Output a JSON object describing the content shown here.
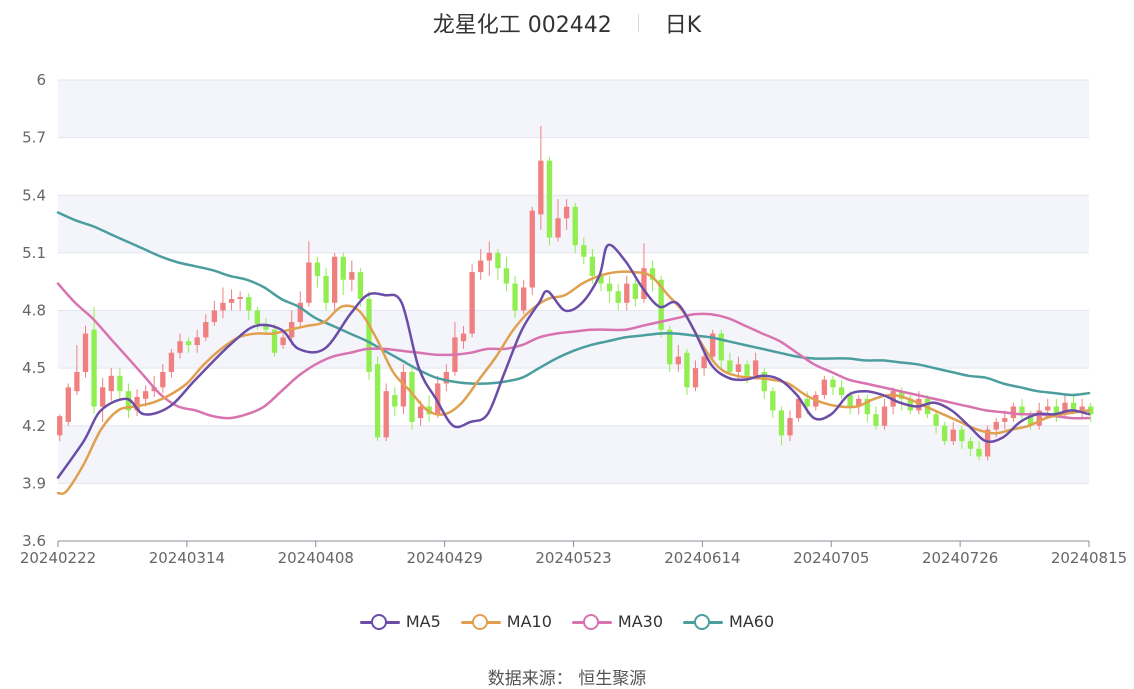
{
  "header": {
    "name": "龙星化工 002442",
    "period": "日K"
  },
  "source": "数据来源： 恒生聚源",
  "colors": {
    "up": "#f08080",
    "down": "#90ee50",
    "band": "#f4f5fb",
    "grid": "#e3e6f2",
    "ma5": "#6b4da8",
    "ma10": "#e0a050",
    "ma30": "#d873b0",
    "ma60": "#4c9e9e"
  },
  "chart_data": {
    "type": "candlestick",
    "title": "龙星化工 002442 日K",
    "ylim": [
      3.6,
      6.0
    ],
    "yticks": [
      "3.6",
      "3.9",
      "4.2",
      "4.5",
      "4.8",
      "5.1",
      "5.4",
      "5.7",
      "6"
    ],
    "xticks": [
      "20240222",
      "20240314",
      "20240408",
      "20240429",
      "20240523",
      "20240614",
      "20240705",
      "20240726",
      "20240815"
    ],
    "xtick_index": [
      0,
      15,
      30,
      45,
      60,
      75,
      90,
      105,
      120
    ],
    "n_days": 120,
    "legend": [
      {
        "key": "ma5",
        "label": "MA5"
      },
      {
        "key": "ma10",
        "label": "MA10"
      },
      {
        "key": "ma30",
        "label": "MA30"
      },
      {
        "key": "ma60",
        "label": "MA60"
      }
    ],
    "candles": [
      [
        4.15,
        4.25,
        4.12,
        4.26
      ],
      [
        4.22,
        4.4,
        4.2,
        4.42
      ],
      [
        4.38,
        4.48,
        4.36,
        4.62
      ],
      [
        4.48,
        4.68,
        4.45,
        4.72
      ],
      [
        4.7,
        4.3,
        4.26,
        4.82
      ],
      [
        4.3,
        4.4,
        4.22,
        4.45
      ],
      [
        4.38,
        4.46,
        4.33,
        4.5
      ],
      [
        4.46,
        4.38,
        4.34,
        4.5
      ],
      [
        4.38,
        4.28,
        4.24,
        4.42
      ],
      [
        4.28,
        4.35,
        4.25,
        4.39
      ],
      [
        4.34,
        4.38,
        4.3,
        4.41
      ],
      [
        4.38,
        4.4,
        4.35,
        4.46
      ],
      [
        4.4,
        4.48,
        4.37,
        4.52
      ],
      [
        4.48,
        4.58,
        4.45,
        4.6
      ],
      [
        4.58,
        4.64,
        4.55,
        4.68
      ],
      [
        4.64,
        4.62,
        4.58,
        4.66
      ],
      [
        4.62,
        4.66,
        4.58,
        4.7
      ],
      [
        4.66,
        4.74,
        4.64,
        4.78
      ],
      [
        4.74,
        4.8,
        4.72,
        4.85
      ],
      [
        4.8,
        4.84,
        4.76,
        4.92
      ],
      [
        4.84,
        4.86,
        4.8,
        4.91
      ],
      [
        4.86,
        4.87,
        4.8,
        4.9
      ],
      [
        4.87,
        4.8,
        4.75,
        4.89
      ],
      [
        4.8,
        4.73,
        4.7,
        4.82
      ],
      [
        4.73,
        4.7,
        4.68,
        4.76
      ],
      [
        4.7,
        4.58,
        4.56,
        4.73
      ],
      [
        4.62,
        4.66,
        4.6,
        4.7
      ],
      [
        4.66,
        4.74,
        4.62,
        4.8
      ],
      [
        4.74,
        4.84,
        4.72,
        4.9
      ],
      [
        4.84,
        5.05,
        4.82,
        5.16
      ],
      [
        5.05,
        4.98,
        4.92,
        5.08
      ],
      [
        4.98,
        4.84,
        4.8,
        5.02
      ],
      [
        4.84,
        5.08,
        4.8,
        5.1
      ],
      [
        5.08,
        4.96,
        4.88,
        5.1
      ],
      [
        4.96,
        5.0,
        4.9,
        5.06
      ],
      [
        5.0,
        4.86,
        4.82,
        5.02
      ],
      [
        4.86,
        4.48,
        4.44,
        4.9
      ],
      [
        4.52,
        4.14,
        4.12,
        4.56
      ],
      [
        4.14,
        4.38,
        4.12,
        4.42
      ],
      [
        4.36,
        4.3,
        4.25,
        4.4
      ],
      [
        4.3,
        4.48,
        4.26,
        4.52
      ],
      [
        4.48,
        4.22,
        4.18,
        4.5
      ],
      [
        4.24,
        4.3,
        4.2,
        4.33
      ],
      [
        4.3,
        4.26,
        4.22,
        4.36
      ],
      [
        4.26,
        4.42,
        4.24,
        4.46
      ],
      [
        4.42,
        4.48,
        4.38,
        4.52
      ],
      [
        4.48,
        4.66,
        4.46,
        4.74
      ],
      [
        4.64,
        4.68,
        4.6,
        4.72
      ],
      [
        4.68,
        5.0,
        4.66,
        5.04
      ],
      [
        5.0,
        5.06,
        4.96,
        5.12
      ],
      [
        5.06,
        5.1,
        4.98,
        5.16
      ],
      [
        5.1,
        5.02,
        4.96,
        5.12
      ],
      [
        5.02,
        4.94,
        4.9,
        5.08
      ],
      [
        4.94,
        4.8,
        4.76,
        4.98
      ],
      [
        4.8,
        4.92,
        4.78,
        4.96
      ],
      [
        4.92,
        5.32,
        4.88,
        5.34
      ],
      [
        5.3,
        5.58,
        5.22,
        5.76
      ],
      [
        5.58,
        5.18,
        5.14,
        5.6
      ],
      [
        5.18,
        5.28,
        5.16,
        5.38
      ],
      [
        5.28,
        5.34,
        5.22,
        5.38
      ],
      [
        5.34,
        5.14,
        5.1,
        5.36
      ],
      [
        5.14,
        5.08,
        5.04,
        5.18
      ],
      [
        5.08,
        4.98,
        4.94,
        5.12
      ],
      [
        4.98,
        4.94,
        4.9,
        5.02
      ],
      [
        4.94,
        4.9,
        4.84,
        4.98
      ],
      [
        4.9,
        4.84,
        4.8,
        4.94
      ],
      [
        4.84,
        4.94,
        4.8,
        4.98
      ],
      [
        4.94,
        4.86,
        4.82,
        4.96
      ],
      [
        4.86,
        5.02,
        4.84,
        5.15
      ],
      [
        5.02,
        4.96,
        4.9,
        5.06
      ],
      [
        4.96,
        4.7,
        4.66,
        4.98
      ],
      [
        4.7,
        4.52,
        4.48,
        4.72
      ],
      [
        4.52,
        4.56,
        4.48,
        4.62
      ],
      [
        4.58,
        4.4,
        4.36,
        4.6
      ],
      [
        4.4,
        4.5,
        4.38,
        4.54
      ],
      [
        4.5,
        4.56,
        4.46,
        4.6
      ],
      [
        4.56,
        4.68,
        4.54,
        4.7
      ],
      [
        4.68,
        4.54,
        4.5,
        4.7
      ],
      [
        4.54,
        4.48,
        4.46,
        4.58
      ],
      [
        4.48,
        4.52,
        4.44,
        4.56
      ],
      [
        4.52,
        4.46,
        4.42,
        4.54
      ],
      [
        4.46,
        4.54,
        4.44,
        4.58
      ],
      [
        4.48,
        4.38,
        4.34,
        4.5
      ],
      [
        4.38,
        4.28,
        4.24,
        4.4
      ],
      [
        4.28,
        4.15,
        4.1,
        4.3
      ],
      [
        4.15,
        4.24,
        4.12,
        4.28
      ],
      [
        4.24,
        4.34,
        4.22,
        4.36
      ],
      [
        4.34,
        4.3,
        4.26,
        4.38
      ],
      [
        4.3,
        4.36,
        4.28,
        4.38
      ],
      [
        4.36,
        4.44,
        4.34,
        4.46
      ],
      [
        4.44,
        4.4,
        4.36,
        4.46
      ],
      [
        4.4,
        4.36,
        4.34,
        4.44
      ],
      [
        4.36,
        4.3,
        4.26,
        4.38
      ],
      [
        4.3,
        4.34,
        4.26,
        4.36
      ],
      [
        4.34,
        4.26,
        4.22,
        4.36
      ],
      [
        4.26,
        4.2,
        4.18,
        4.3
      ],
      [
        4.2,
        4.3,
        4.18,
        4.34
      ],
      [
        4.3,
        4.38,
        4.26,
        4.4
      ],
      [
        4.38,
        4.34,
        4.28,
        4.4
      ],
      [
        4.34,
        4.28,
        4.26,
        4.36
      ],
      [
        4.28,
        4.34,
        4.26,
        4.38
      ],
      [
        4.34,
        4.26,
        4.24,
        4.36
      ],
      [
        4.26,
        4.2,
        4.16,
        4.28
      ],
      [
        4.2,
        4.12,
        4.1,
        4.22
      ],
      [
        4.12,
        4.18,
        4.1,
        4.22
      ],
      [
        4.18,
        4.12,
        4.08,
        4.2
      ],
      [
        4.12,
        4.08,
        4.04,
        4.14
      ],
      [
        4.08,
        4.04,
        4.02,
        4.12
      ],
      [
        4.04,
        4.18,
        4.02,
        4.2
      ],
      [
        4.18,
        4.22,
        4.14,
        4.24
      ],
      [
        4.22,
        4.24,
        4.18,
        4.28
      ],
      [
        4.24,
        4.3,
        4.22,
        4.32
      ],
      [
        4.3,
        4.26,
        4.22,
        4.34
      ],
      [
        4.26,
        4.2,
        4.18,
        4.28
      ],
      [
        4.2,
        4.28,
        4.18,
        4.32
      ],
      [
        4.28,
        4.3,
        4.24,
        4.34
      ],
      [
        4.3,
        4.26,
        4.22,
        4.34
      ],
      [
        4.26,
        4.32,
        4.24,
        4.36
      ],
      [
        4.32,
        4.28,
        4.26,
        4.36
      ],
      [
        4.28,
        4.3,
        4.24,
        4.34
      ],
      [
        4.3,
        4.26,
        4.22,
        4.32
      ]
    ],
    "ma5": [
      [
        0,
        3.93
      ],
      [
        3,
        4.12
      ],
      [
        5,
        4.28
      ],
      [
        8,
        4.34
      ],
      [
        10,
        4.26
      ],
      [
        13,
        4.3
      ],
      [
        16,
        4.44
      ],
      [
        20,
        4.62
      ],
      [
        23,
        4.72
      ],
      [
        26,
        4.7
      ],
      [
        28,
        4.6
      ],
      [
        31,
        4.6
      ],
      [
        34,
        4.78
      ],
      [
        36,
        4.88
      ],
      [
        38,
        4.88
      ],
      [
        40,
        4.84
      ],
      [
        42,
        4.5
      ],
      [
        44,
        4.34
      ],
      [
        46,
        4.2
      ],
      [
        48,
        4.22
      ],
      [
        50,
        4.26
      ],
      [
        52,
        4.48
      ],
      [
        54,
        4.7
      ],
      [
        56,
        4.84
      ],
      [
        57,
        4.9
      ],
      [
        59,
        4.8
      ],
      [
        61,
        4.84
      ],
      [
        63,
        4.98
      ],
      [
        64,
        5.14
      ],
      [
        66,
        5.06
      ],
      [
        68,
        4.92
      ],
      [
        70,
        4.82
      ],
      [
        72,
        4.84
      ],
      [
        74,
        4.7
      ],
      [
        76,
        4.52
      ],
      [
        78,
        4.45
      ],
      [
        80,
        4.44
      ],
      [
        82,
        4.46
      ],
      [
        84,
        4.44
      ],
      [
        86,
        4.36
      ],
      [
        88,
        4.24
      ],
      [
        90,
        4.26
      ],
      [
        92,
        4.36
      ],
      [
        94,
        4.38
      ],
      [
        96,
        4.36
      ],
      [
        98,
        4.32
      ],
      [
        100,
        4.3
      ],
      [
        102,
        4.32
      ],
      [
        104,
        4.28
      ],
      [
        106,
        4.2
      ],
      [
        108,
        4.12
      ],
      [
        110,
        4.14
      ],
      [
        112,
        4.22
      ],
      [
        114,
        4.26
      ],
      [
        116,
        4.26
      ],
      [
        118,
        4.28
      ],
      [
        120,
        4.26
      ]
    ],
    "ma10": [
      [
        0,
        3.85
      ],
      [
        1,
        3.86
      ],
      [
        3,
        4.0
      ],
      [
        5,
        4.18
      ],
      [
        7,
        4.28
      ],
      [
        9,
        4.3
      ],
      [
        11,
        4.32
      ],
      [
        13,
        4.36
      ],
      [
        15,
        4.42
      ],
      [
        17,
        4.52
      ],
      [
        19,
        4.6
      ],
      [
        21,
        4.66
      ],
      [
        23,
        4.68
      ],
      [
        25,
        4.68
      ],
      [
        27,
        4.7
      ],
      [
        29,
        4.72
      ],
      [
        31,
        4.74
      ],
      [
        33,
        4.82
      ],
      [
        35,
        4.8
      ],
      [
        37,
        4.66
      ],
      [
        39,
        4.48
      ],
      [
        41,
        4.38
      ],
      [
        43,
        4.28
      ],
      [
        45,
        4.26
      ],
      [
        47,
        4.32
      ],
      [
        49,
        4.44
      ],
      [
        51,
        4.56
      ],
      [
        53,
        4.7
      ],
      [
        55,
        4.8
      ],
      [
        57,
        4.86
      ],
      [
        59,
        4.88
      ],
      [
        61,
        4.94
      ],
      [
        63,
        4.98
      ],
      [
        65,
        5.0
      ],
      [
        67,
        5.0
      ],
      [
        69,
        4.98
      ],
      [
        71,
        4.88
      ],
      [
        73,
        4.78
      ],
      [
        75,
        4.62
      ],
      [
        77,
        4.5
      ],
      [
        79,
        4.46
      ],
      [
        81,
        4.45
      ],
      [
        83,
        4.44
      ],
      [
        85,
        4.42
      ],
      [
        87,
        4.36
      ],
      [
        89,
        4.32
      ],
      [
        91,
        4.3
      ],
      [
        93,
        4.3
      ],
      [
        95,
        4.34
      ],
      [
        97,
        4.36
      ],
      [
        99,
        4.34
      ],
      [
        101,
        4.3
      ],
      [
        103,
        4.26
      ],
      [
        105,
        4.22
      ],
      [
        107,
        4.18
      ],
      [
        109,
        4.16
      ],
      [
        111,
        4.18
      ],
      [
        113,
        4.2
      ],
      [
        115,
        4.24
      ],
      [
        117,
        4.26
      ],
      [
        120,
        4.28
      ]
    ],
    "ma30": [
      [
        0,
        4.94
      ],
      [
        2,
        4.84
      ],
      [
        4,
        4.76
      ],
      [
        6,
        4.66
      ],
      [
        8,
        4.56
      ],
      [
        10,
        4.46
      ],
      [
        12,
        4.36
      ],
      [
        14,
        4.3
      ],
      [
        16,
        4.28
      ],
      [
        18,
        4.25
      ],
      [
        20,
        4.24
      ],
      [
        22,
        4.26
      ],
      [
        24,
        4.3
      ],
      [
        26,
        4.38
      ],
      [
        28,
        4.46
      ],
      [
        30,
        4.52
      ],
      [
        32,
        4.56
      ],
      [
        34,
        4.58
      ],
      [
        36,
        4.6
      ],
      [
        38,
        4.6
      ],
      [
        40,
        4.59
      ],
      [
        42,
        4.58
      ],
      [
        44,
        4.57
      ],
      [
        46,
        4.57
      ],
      [
        48,
        4.58
      ],
      [
        50,
        4.6
      ],
      [
        52,
        4.6
      ],
      [
        54,
        4.62
      ],
      [
        56,
        4.66
      ],
      [
        58,
        4.68
      ],
      [
        60,
        4.69
      ],
      [
        62,
        4.7
      ],
      [
        64,
        4.7
      ],
      [
        66,
        4.7
      ],
      [
        68,
        4.72
      ],
      [
        70,
        4.74
      ],
      [
        72,
        4.76
      ],
      [
        74,
        4.78
      ],
      [
        76,
        4.78
      ],
      [
        78,
        4.76
      ],
      [
        80,
        4.72
      ],
      [
        82,
        4.68
      ],
      [
        84,
        4.64
      ],
      [
        86,
        4.58
      ],
      [
        88,
        4.52
      ],
      [
        90,
        4.48
      ],
      [
        92,
        4.44
      ],
      [
        94,
        4.42
      ],
      [
        96,
        4.4
      ],
      [
        98,
        4.38
      ],
      [
        100,
        4.36
      ],
      [
        102,
        4.34
      ],
      [
        104,
        4.32
      ],
      [
        106,
        4.3
      ],
      [
        108,
        4.28
      ],
      [
        110,
        4.27
      ],
      [
        112,
        4.26
      ],
      [
        114,
        4.26
      ],
      [
        116,
        4.25
      ],
      [
        118,
        4.24
      ],
      [
        120,
        4.24
      ]
    ],
    "ma60": [
      [
        0,
        5.31
      ],
      [
        2,
        5.27
      ],
      [
        4,
        5.24
      ],
      [
        6,
        5.2
      ],
      [
        8,
        5.16
      ],
      [
        10,
        5.12
      ],
      [
        12,
        5.08
      ],
      [
        14,
        5.05
      ],
      [
        16,
        5.03
      ],
      [
        18,
        5.01
      ],
      [
        20,
        4.98
      ],
      [
        22,
        4.96
      ],
      [
        24,
        4.92
      ],
      [
        26,
        4.86
      ],
      [
        28,
        4.82
      ],
      [
        30,
        4.76
      ],
      [
        32,
        4.72
      ],
      [
        34,
        4.68
      ],
      [
        36,
        4.64
      ],
      [
        38,
        4.59
      ],
      [
        40,
        4.54
      ],
      [
        42,
        4.49
      ],
      [
        44,
        4.45
      ],
      [
        46,
        4.43
      ],
      [
        48,
        4.42
      ],
      [
        50,
        4.42
      ],
      [
        52,
        4.43
      ],
      [
        54,
        4.45
      ],
      [
        56,
        4.5
      ],
      [
        58,
        4.55
      ],
      [
        60,
        4.59
      ],
      [
        62,
        4.62
      ],
      [
        64,
        4.64
      ],
      [
        66,
        4.66
      ],
      [
        68,
        4.67
      ],
      [
        70,
        4.68
      ],
      [
        72,
        4.68
      ],
      [
        74,
        4.67
      ],
      [
        76,
        4.66
      ],
      [
        78,
        4.64
      ],
      [
        80,
        4.62
      ],
      [
        82,
        4.6
      ],
      [
        84,
        4.58
      ],
      [
        86,
        4.56
      ],
      [
        88,
        4.55
      ],
      [
        90,
        4.55
      ],
      [
        92,
        4.55
      ],
      [
        94,
        4.54
      ],
      [
        96,
        4.54
      ],
      [
        98,
        4.53
      ],
      [
        100,
        4.52
      ],
      [
        102,
        4.5
      ],
      [
        104,
        4.48
      ],
      [
        106,
        4.46
      ],
      [
        108,
        4.45
      ],
      [
        110,
        4.42
      ],
      [
        112,
        4.4
      ],
      [
        114,
        4.38
      ],
      [
        116,
        4.37
      ],
      [
        118,
        4.36
      ],
      [
        120,
        4.37
      ]
    ]
  }
}
